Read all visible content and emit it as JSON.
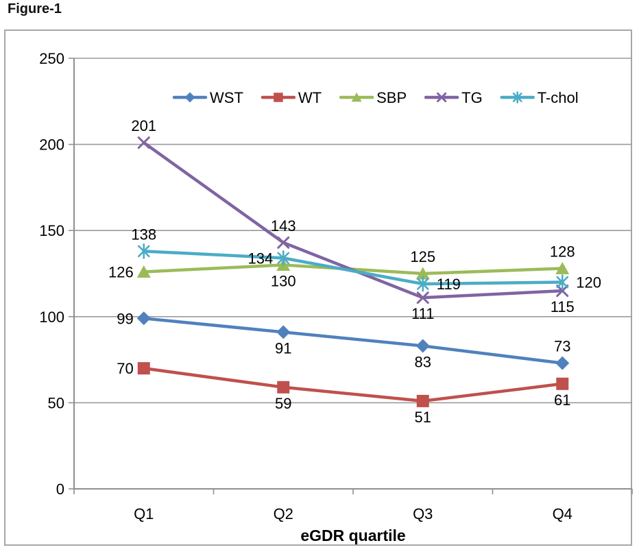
{
  "figure": {
    "title": "Figure-1"
  },
  "chart_data": {
    "type": "line",
    "title": "Figure-1",
    "categories": [
      "Q1",
      "Q2",
      "Q3",
      "Q4"
    ],
    "xlabel": "eGDR quartile",
    "ylabel": "",
    "ylim": [
      0,
      250
    ],
    "yticks": [
      0,
      50,
      100,
      150,
      200,
      250
    ],
    "grid": "horizontal",
    "legend_position": "top-inside",
    "series": [
      {
        "name": "WST",
        "color": "#4F81BD",
        "marker": "diamond",
        "values": [
          99,
          91,
          83,
          73
        ],
        "label_positions": [
          "left",
          "below",
          "below",
          "above"
        ]
      },
      {
        "name": "WT",
        "color": "#C0504D",
        "marker": "square",
        "values": [
          70,
          59,
          51,
          61
        ],
        "label_positions": [
          "left",
          "below",
          "below",
          "below"
        ]
      },
      {
        "name": "SBP",
        "color": "#9BBB59",
        "marker": "triangle",
        "values": [
          126,
          130,
          125,
          128
        ],
        "label_positions": [
          "left",
          "below",
          "above",
          "above"
        ]
      },
      {
        "name": "TG",
        "color": "#8064A2",
        "marker": "x",
        "values": [
          201,
          143,
          111,
          115
        ],
        "label_positions": [
          "above",
          "above",
          "below",
          "below"
        ]
      },
      {
        "name": "T-chol",
        "color": "#4BACC6",
        "marker": "asterisk",
        "values": [
          138,
          134,
          119,
          120
        ],
        "label_positions": [
          "above",
          "left",
          "right",
          "right"
        ]
      }
    ],
    "style": {
      "axis_color": "#8F8F8F",
      "grid_color": "#9A9A9A",
      "border_color": "#A6A6A6",
      "text_color": "#000000",
      "background": "#FFFFFF"
    }
  }
}
